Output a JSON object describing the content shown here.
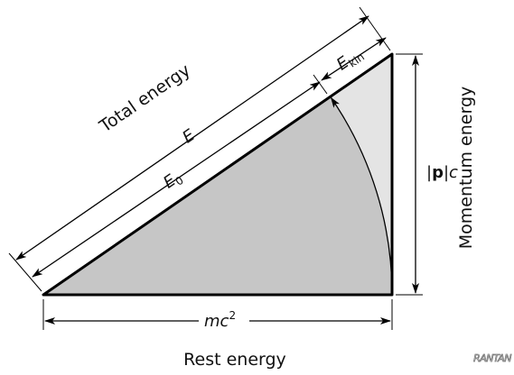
{
  "labels": {
    "total_energy": "Total energy",
    "e": "E",
    "e0": {
      "main": "E",
      "sub": "0"
    },
    "ekin": {
      "main": "E",
      "sub": "kin"
    },
    "momentum": {
      "left": "|",
      "bold": "p",
      "right": "|c"
    },
    "momentum_energy": "Momentum energy",
    "rest": {
      "main": "mc",
      "sup": "2"
    },
    "rest_energy": "Rest energy",
    "logo": "RANTAN"
  }
}
